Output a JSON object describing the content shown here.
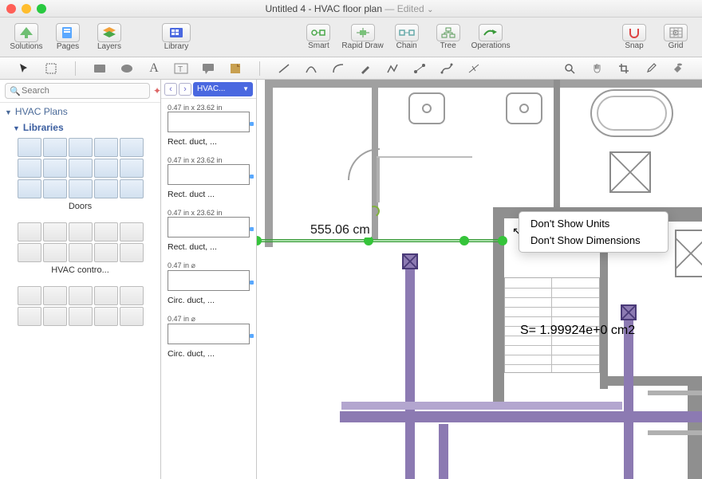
{
  "window": {
    "title_prefix": "Untitled 4 - HVAC floor plan",
    "edited_suffix": " — Edited",
    "dropdown_glyph": "⌄"
  },
  "toolbar": {
    "solutions": "Solutions",
    "pages": "Pages",
    "layers": "Layers",
    "library": "Library",
    "smart": "Smart",
    "rapid_draw": "Rapid Draw",
    "chain": "Chain",
    "tree": "Tree",
    "operations": "Operations",
    "snap": "Snap",
    "grid": "Grid",
    "colors": {
      "solutions": "#6fbf73",
      "pages": "#5aa8ff",
      "layers": "#f2a13a",
      "library": "#4a68e0"
    }
  },
  "shape_toolbar": {
    "tools": [
      "pointer",
      "text-select",
      "rect",
      "ellipse",
      "text",
      "textbox",
      "callout",
      "note",
      "line",
      "curve-line",
      "arc",
      "pen",
      "polyline",
      "connector",
      "bezier",
      "segment"
    ],
    "right_tools": [
      "zoom",
      "pan",
      "eyedropper",
      "picker",
      "paint"
    ]
  },
  "sidebar": {
    "search_placeholder": "Search",
    "tree": {
      "root": "HVAC Plans",
      "child": "Libraries"
    },
    "palettes": [
      {
        "label": "Doors",
        "cells": 15,
        "style": "blue"
      },
      {
        "label": "HVAC contro...",
        "cells": 10,
        "style": "gray"
      },
      {
        "label": "",
        "cells": 10,
        "style": "gray"
      }
    ]
  },
  "thumbs": {
    "breadcrumb": "HVAC...",
    "items": [
      {
        "caption": "0.47 in x 23.62 in",
        "label": "Rect. duct, ..."
      },
      {
        "caption": "0.47 in x 23.62 in",
        "label": "Rect. duct ..."
      },
      {
        "caption": "0.47 in x 23.62 in",
        "label": "Rect. duct, ..."
      },
      {
        "caption": "0.47 in ⌀",
        "label": "Circ. duct, ..."
      },
      {
        "caption": "0.47 in ⌀",
        "label": "Circ. duct, ..."
      }
    ]
  },
  "canvas": {
    "dimension_text": "555.06 cm",
    "area_text": "S= 1.99924e+0   cm2",
    "context_menu": {
      "item1": "Don't Show Units",
      "item2": "Don't Show Dimensions"
    },
    "colors": {
      "wall": "#a0a0a0",
      "wall_dark": "#8f8f8f",
      "duct": "#8c7ab2",
      "duct_edge": "#4a3a78",
      "selection": "#35c43a"
    }
  }
}
